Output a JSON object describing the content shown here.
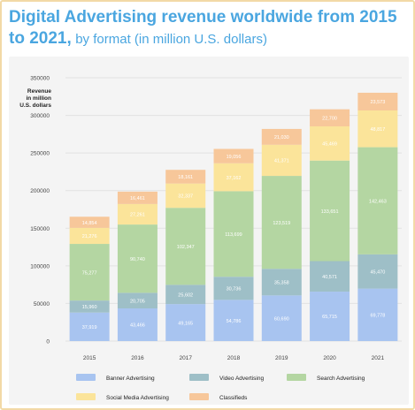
{
  "chart_data": {
    "type": "bar",
    "stacked": true,
    "title": "Digital Advertising revenue worldwide from 2015 to 2021,",
    "subtitle": "by format (in million U.S. dollars)",
    "ylabel": "Revenue in million U.S. dollars",
    "ylabel_lines": [
      "Revenue",
      "in million",
      "U.S. dollars"
    ],
    "xlabel": "",
    "ylim": [
      0,
      350000
    ],
    "yticks": [
      0,
      50000,
      100000,
      150000,
      200000,
      250000,
      300000,
      350000
    ],
    "categories": [
      "2015",
      "2016",
      "2017",
      "2018",
      "2019",
      "2020",
      "2021"
    ],
    "series": [
      {
        "name": "Banner Advertising",
        "color": "#a8c4f0",
        "values": [
          37919,
          43466,
          49165,
          54786,
          60690,
          65715,
          69778
        ],
        "labels": [
          "37,919",
          "43,466",
          "49,165",
          "54,786",
          "60,690",
          "65,715",
          "69,778"
        ]
      },
      {
        "name": "Video Advertising",
        "color": "#9ebfc7",
        "values": [
          15960,
          20705,
          25602,
          30736,
          35358,
          40571,
          45470
        ],
        "labels": [
          "15,960",
          "20,705",
          "25,602",
          "30,736",
          "35,358",
          "40,571",
          "45,470"
        ]
      },
      {
        "name": "Search Advertising",
        "color": "#b4d6a2",
        "values": [
          75277,
          90740,
          102347,
          113699,
          123519,
          133651,
          142463
        ],
        "labels": [
          "75,277",
          "90,740",
          "102,347",
          "113,699",
          "123,519",
          "133,651",
          "142,463"
        ]
      },
      {
        "name": "Social Media Advertising",
        "color": "#fbe49a",
        "values": [
          21276,
          27261,
          32337,
          37162,
          41371,
          45469,
          48817
        ],
        "labels": [
          "21,276",
          "27,261",
          "32,337",
          "37,162",
          "41,371",
          "45,469",
          "48,817"
        ]
      },
      {
        "name": "Classifieds",
        "color": "#f7c79a",
        "values": [
          14854,
          16461,
          18161,
          19056,
          21030,
          22700,
          23573
        ],
        "labels": [
          "14,854",
          "16,461",
          "18,161",
          "19,056",
          "21,030",
          "22,700",
          "23,573"
        ]
      }
    ],
    "grid": true,
    "legend": "bottom"
  }
}
